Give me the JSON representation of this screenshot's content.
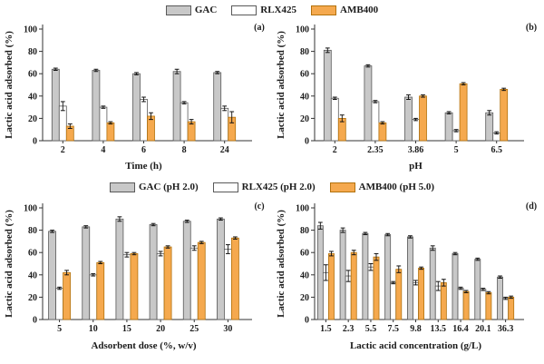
{
  "figure": {
    "background": "#ffffff",
    "y_axis_label": "Lactic acid adsorbed (%)"
  },
  "colors": {
    "gac_fill": "#c8c8c8",
    "gac_stroke": "#595959",
    "rlx_fill": "#ffffff",
    "rlx_stroke": "#595959",
    "amb_fill": "#f5a94e",
    "amb_stroke": "#b3720d",
    "axis": "#333333",
    "error_bar": "#111111",
    "text": "#1a1a1a"
  },
  "legends": [
    {
      "entries": [
        {
          "label": "GAC",
          "fill": "#c8c8c8",
          "stroke": "#595959"
        },
        {
          "label": "RLX425",
          "fill": "#ffffff",
          "stroke": "#595959"
        },
        {
          "label": "AMB400",
          "fill": "#f5a94e",
          "stroke": "#b3720d"
        }
      ]
    },
    {
      "entries": [
        {
          "label": "GAC (pH 2.0)",
          "fill": "#c8c8c8",
          "stroke": "#595959"
        },
        {
          "label": "RLX425 (pH 2.0)",
          "fill": "#ffffff",
          "stroke": "#595959"
        },
        {
          "label": "AMB400 (pH 5.0)",
          "fill": "#f5a94e",
          "stroke": "#b3720d"
        }
      ]
    }
  ],
  "chart_data": [
    {
      "type": "bar",
      "panel_label": "(a)",
      "categories": [
        "2",
        "4",
        "6",
        "8",
        "24"
      ],
      "xlabel": "Time (h)",
      "ylabel": "Lactic acid adsorbed (%)",
      "ylim": [
        0,
        100
      ],
      "yticks": [
        0,
        20,
        40,
        60,
        80,
        100
      ],
      "grid": false,
      "legend_position": "top-center",
      "series": [
        {
          "name": "GAC",
          "fill": "#c8c8c8",
          "stroke": "#595959",
          "values": [
            64,
            63,
            60,
            62,
            61
          ],
          "errors": [
            1,
            1,
            1,
            2,
            1
          ]
        },
        {
          "name": "RLX425",
          "fill": "#ffffff",
          "stroke": "#595959",
          "values": [
            31,
            30,
            37,
            34,
            29
          ],
          "errors": [
            4,
            1,
            2,
            1,
            2
          ]
        },
        {
          "name": "AMB400",
          "fill": "#f5a94e",
          "stroke": "#b3720d",
          "values": [
            13,
            16,
            22,
            17,
            21
          ],
          "errors": [
            2,
            1,
            3,
            2,
            5
          ]
        }
      ]
    },
    {
      "type": "bar",
      "panel_label": "(b)",
      "categories": [
        "2",
        "2.35",
        "3.86",
        "5",
        "6.5"
      ],
      "xlabel": "pH",
      "ylabel": "Lactic acid adsorbed (%)",
      "ylim": [
        0,
        100
      ],
      "yticks": [
        0,
        20,
        40,
        60,
        80,
        100
      ],
      "grid": false,
      "legend_position": "top-center",
      "series": [
        {
          "name": "GAC",
          "fill": "#c8c8c8",
          "stroke": "#595959",
          "values": [
            81,
            67,
            39,
            25,
            25
          ],
          "errors": [
            2,
            1,
            2,
            1,
            2
          ]
        },
        {
          "name": "RLX425",
          "fill": "#ffffff",
          "stroke": "#595959",
          "values": [
            38,
            35,
            19,
            9,
            7
          ],
          "errors": [
            1,
            1,
            1,
            1,
            1
          ]
        },
        {
          "name": "AMB400",
          "fill": "#f5a94e",
          "stroke": "#b3720d",
          "values": [
            20,
            16,
            40,
            51,
            46
          ],
          "errors": [
            3,
            1,
            1,
            1,
            1
          ]
        }
      ]
    },
    {
      "type": "bar",
      "panel_label": "(c)",
      "categories": [
        "5",
        "10",
        "15",
        "20",
        "25",
        "30"
      ],
      "xlabel": "Adsorbent dose (%, w/v)",
      "ylabel": "Lactic acid adsorbed (%)",
      "ylim": [
        0,
        100
      ],
      "yticks": [
        0,
        20,
        40,
        60,
        80,
        100
      ],
      "grid": false,
      "legend_position": "top-center",
      "series": [
        {
          "name": "GAC (pH 2.0)",
          "fill": "#c8c8c8",
          "stroke": "#595959",
          "values": [
            79,
            83,
            90,
            85,
            88,
            90
          ],
          "errors": [
            1,
            1,
            2,
            1,
            1,
            1
          ]
        },
        {
          "name": "RLX425 (pH 2.0)",
          "fill": "#ffffff",
          "stroke": "#595959",
          "values": [
            28,
            40,
            58,
            59,
            64,
            63
          ],
          "errors": [
            1,
            1,
            2,
            2,
            2,
            4
          ]
        },
        {
          "name": "AMB400 (pH 5.0)",
          "fill": "#f5a94e",
          "stroke": "#b3720d",
          "values": [
            42,
            51,
            59,
            65,
            69,
            73
          ],
          "errors": [
            2,
            1,
            1,
            1,
            1,
            1
          ]
        }
      ]
    },
    {
      "type": "bar",
      "panel_label": "(d)",
      "categories": [
        "1.5",
        "2.3",
        "5.5",
        "7.5",
        "9.8",
        "13.5",
        "16.4",
        "20.1",
        "36.3"
      ],
      "xlabel": "Lactic acid concentration (g/L)",
      "ylabel": "Lactic acid adsorbed (%)",
      "ylim": [
        0,
        100
      ],
      "yticks": [
        0,
        20,
        40,
        60,
        80,
        100
      ],
      "grid": false,
      "legend_position": "top-center",
      "series": [
        {
          "name": "GAC (pH 2.0)",
          "fill": "#c8c8c8",
          "stroke": "#595959",
          "values": [
            84,
            80,
            77,
            76,
            74,
            64,
            59,
            54,
            38
          ],
          "errors": [
            3,
            2,
            1,
            1,
            1,
            2,
            1,
            1,
            1
          ]
        },
        {
          "name": "RLX425 (pH 2.0)",
          "fill": "#ffffff",
          "stroke": "#595959",
          "values": [
            42,
            39,
            47,
            33,
            33,
            30,
            28,
            27,
            19
          ],
          "errors": [
            7,
            5,
            3,
            1,
            2,
            4,
            1,
            1,
            1
          ]
        },
        {
          "name": "AMB400 (pH 5.0)",
          "fill": "#f5a94e",
          "stroke": "#b3720d",
          "values": [
            59,
            60,
            56,
            45,
            46,
            33,
            25,
            24,
            20
          ],
          "errors": [
            2,
            2,
            3,
            3,
            1,
            3,
            1,
            1,
            1
          ]
        }
      ]
    }
  ]
}
